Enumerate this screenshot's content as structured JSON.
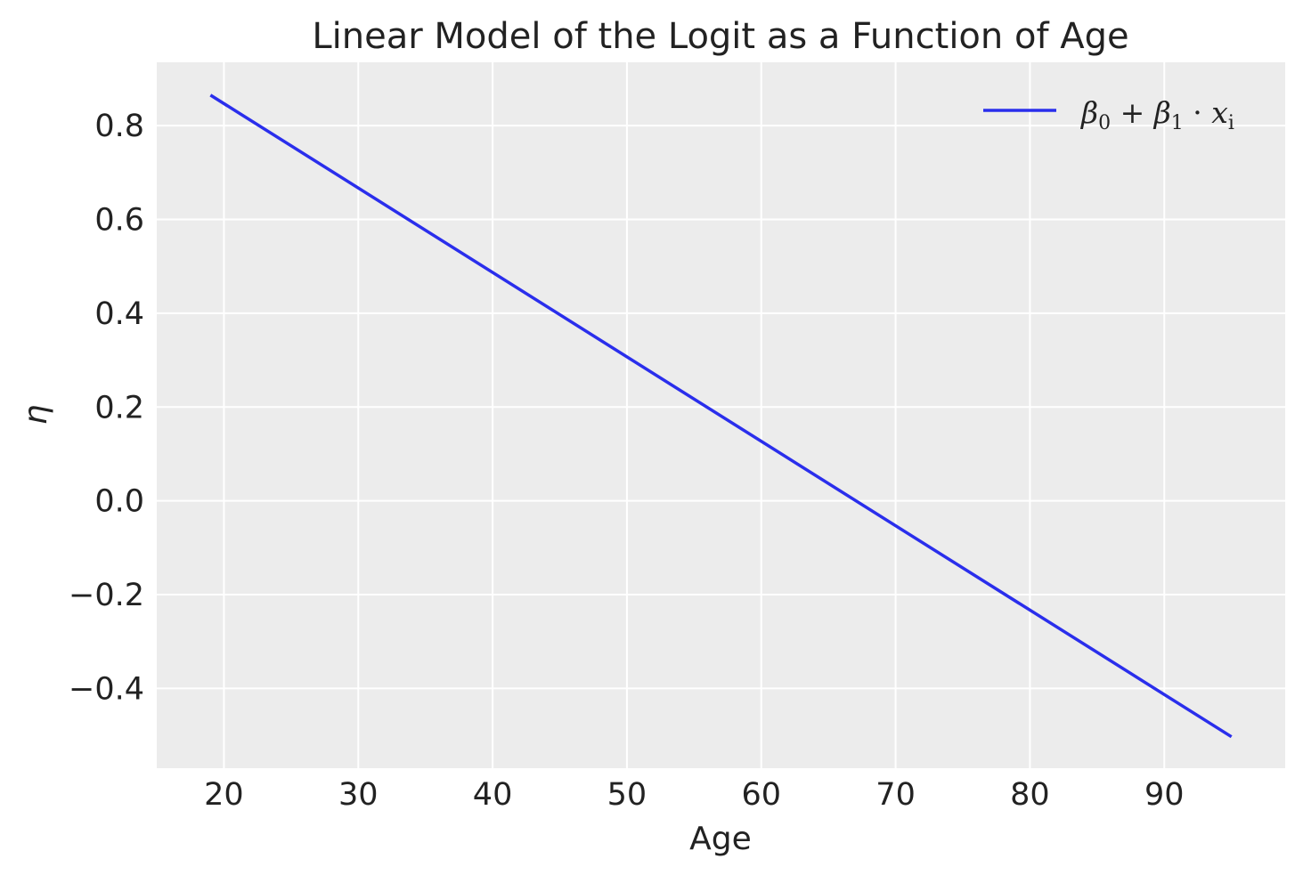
{
  "chart_data": {
    "type": "line",
    "title": "Linear Model of the Logit as a Function of Age",
    "xlabel": "Age",
    "ylabel": "η",
    "xlim": [
      15,
      99
    ],
    "ylim": [
      -0.57,
      0.935
    ],
    "xticks": [
      20,
      30,
      40,
      50,
      60,
      70,
      80,
      90
    ],
    "yticks": [
      0.8,
      0.6,
      0.4,
      0.2,
      0.0,
      -0.2,
      -0.4
    ],
    "xtick_labels": [
      "20",
      "30",
      "40",
      "50",
      "60",
      "70",
      "80",
      "90"
    ],
    "ytick_labels": [
      "0.8",
      "0.6",
      "0.4",
      "0.2",
      "0.0",
      "−0.2",
      "−0.4"
    ],
    "grid": true,
    "background": "#ececec",
    "legend_position": "top-right",
    "series": [
      {
        "name": "β0 + β1 · xi",
        "name_parts": {
          "beta": "β",
          "sub0": "0",
          "plus": " + ",
          "sub1": "1",
          "dot": " · ",
          "x": "x",
          "subi": "i"
        },
        "color": "#2a2eec",
        "x": [
          19,
          95
        ],
        "y": [
          0.865,
          -0.503
        ]
      }
    ]
  }
}
